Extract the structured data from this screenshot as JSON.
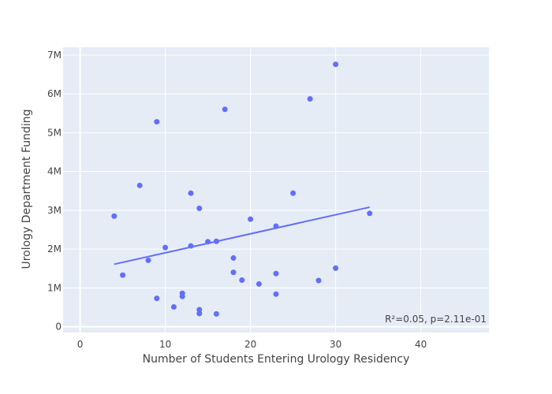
{
  "chart_data": {
    "type": "scatter",
    "xlabel": "Number of Students Entering Urology Residency",
    "ylabel": "Urology Department Funding",
    "xlim": [
      -2,
      48
    ],
    "ylim": [
      -150000,
      7200000
    ],
    "x_ticks": [
      0,
      10,
      20,
      30,
      40
    ],
    "x_tick_labels": [
      "0",
      "10",
      "20",
      "30",
      "40"
    ],
    "y_ticks": [
      0,
      1000000,
      2000000,
      3000000,
      4000000,
      5000000,
      6000000,
      7000000
    ],
    "y_tick_labels": [
      "0",
      "1M",
      "2M",
      "3M",
      "4M",
      "5M",
      "6M",
      "7M"
    ],
    "grid": true,
    "colors": {
      "points": "#636efa",
      "plot_bg": "#e5ecf6",
      "grid": "#ffffff"
    },
    "points": [
      {
        "x": 4,
        "y": 2850000
      },
      {
        "x": 5,
        "y": 1330000
      },
      {
        "x": 7,
        "y": 3640000
      },
      {
        "x": 8,
        "y": 1710000
      },
      {
        "x": 9,
        "y": 5280000
      },
      {
        "x": 9,
        "y": 730000
      },
      {
        "x": 10,
        "y": 2040000
      },
      {
        "x": 11,
        "y": 510000
      },
      {
        "x": 12,
        "y": 860000
      },
      {
        "x": 12,
        "y": 780000
      },
      {
        "x": 13,
        "y": 3440000
      },
      {
        "x": 13,
        "y": 2080000
      },
      {
        "x": 14,
        "y": 3050000
      },
      {
        "x": 14,
        "y": 440000
      },
      {
        "x": 14,
        "y": 340000
      },
      {
        "x": 15,
        "y": 2190000
      },
      {
        "x": 16,
        "y": 2200000
      },
      {
        "x": 16,
        "y": 330000
      },
      {
        "x": 17,
        "y": 5600000
      },
      {
        "x": 18,
        "y": 1770000
      },
      {
        "x": 18,
        "y": 1400000
      },
      {
        "x": 19,
        "y": 1200000
      },
      {
        "x": 20,
        "y": 2770000
      },
      {
        "x": 21,
        "y": 1100000
      },
      {
        "x": 23,
        "y": 2590000
      },
      {
        "x": 23,
        "y": 1370000
      },
      {
        "x": 23,
        "y": 840000
      },
      {
        "x": 25,
        "y": 3440000
      },
      {
        "x": 27,
        "y": 5870000
      },
      {
        "x": 28,
        "y": 1190000
      },
      {
        "x": 30,
        "y": 6760000
      },
      {
        "x": 30,
        "y": 1510000
      },
      {
        "x": 34,
        "y": 2920000
      }
    ],
    "trendline": {
      "x": [
        4,
        34
      ],
      "y": [
        1610000,
        3080000
      ]
    },
    "annotation": "R²=0.05, p=2.11e-01"
  }
}
